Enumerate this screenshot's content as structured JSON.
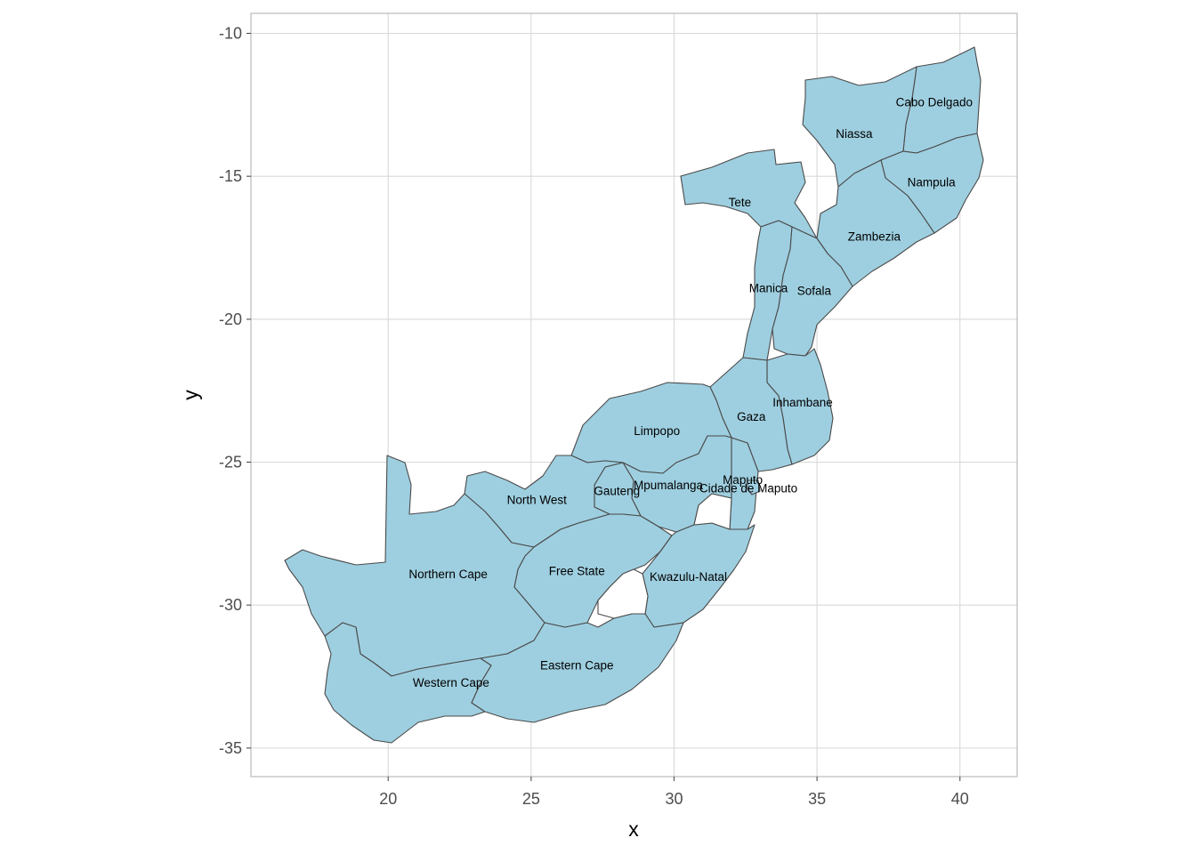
{
  "chart_data": {
    "type": "map",
    "xlabel": "x",
    "ylabel": "y",
    "xlim": [
      15.2,
      42.0
    ],
    "ylim": [
      -36.0,
      -9.3
    ],
    "xticks": [
      20,
      25,
      30,
      35,
      40
    ],
    "yticks": [
      -10,
      -15,
      -20,
      -25,
      -30,
      -35
    ],
    "grid": true,
    "fill_color": "#9ecfe0",
    "border_color": "#4a4a4a",
    "regions": [
      {
        "name": "Cabo Delgado",
        "label_x": 39.1,
        "label_y": -12.4
      },
      {
        "name": "Niassa",
        "label_x": 36.3,
        "label_y": -13.5
      },
      {
        "name": "Nampula",
        "label_x": 39.0,
        "label_y": -15.2
      },
      {
        "name": "Tete",
        "label_x": 32.3,
        "label_y": -15.9
      },
      {
        "name": "Zambezia",
        "label_x": 37.0,
        "label_y": -17.1
      },
      {
        "name": "Manica",
        "label_x": 33.3,
        "label_y": -18.9
      },
      {
        "name": "Sofala",
        "label_x": 34.9,
        "label_y": -19.0
      },
      {
        "name": "Inhambane",
        "label_x": 34.5,
        "label_y": -22.9
      },
      {
        "name": "Gaza",
        "label_x": 32.7,
        "label_y": -23.4
      },
      {
        "name": "Limpopo",
        "label_x": 29.4,
        "label_y": -23.9
      },
      {
        "name": "Maputo",
        "label_x": 32.4,
        "label_y": -25.6
      },
      {
        "name": "Mpumalanga",
        "label_x": 29.8,
        "label_y": -25.8
      },
      {
        "name": "Cidade de Maputo",
        "label_x": 32.6,
        "label_y": -25.9
      },
      {
        "name": "Gauteng",
        "label_x": 28.0,
        "label_y": -26.0
      },
      {
        "name": "North West",
        "label_x": 25.2,
        "label_y": -26.3
      },
      {
        "name": "Free State",
        "label_x": 26.6,
        "label_y": -28.8
      },
      {
        "name": "Northern Cape",
        "label_x": 22.1,
        "label_y": -28.9
      },
      {
        "name": "Kwazulu-Natal",
        "label_x": 30.5,
        "label_y": -29.0
      },
      {
        "name": "Eastern Cape",
        "label_x": 26.6,
        "label_y": -32.1
      },
      {
        "name": "Western Cape",
        "label_x": 22.2,
        "label_y": -32.7
      }
    ]
  }
}
